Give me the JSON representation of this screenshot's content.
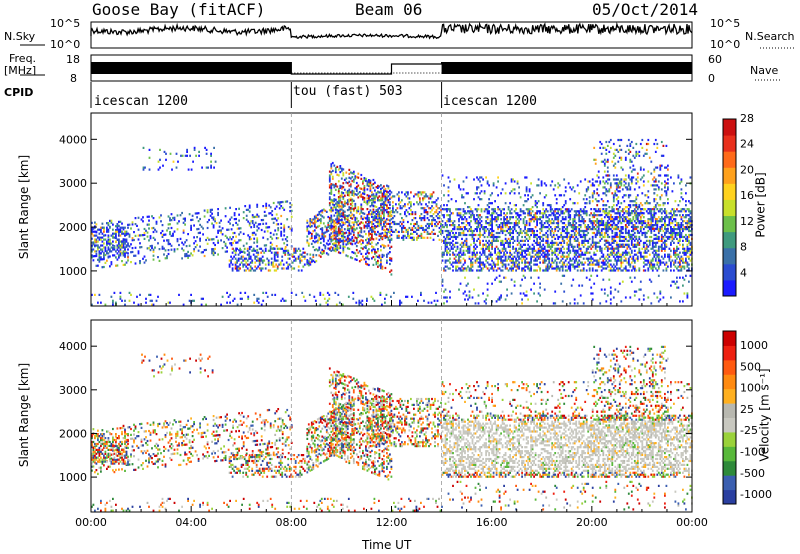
{
  "header": {
    "station": "Goose Bay (fitACF)",
    "beam": "Beam 06",
    "date": "05/Oct/2014"
  },
  "left_labels": {
    "nsky": "N.Sky",
    "freq_line1": "Freq.",
    "freq_line2": "[MHz]",
    "cpid": "CPID"
  },
  "right_labels": {
    "nsearch": "N.Search",
    "nave": "Nave"
  },
  "noise_axis": {
    "top": "10^5",
    "bottom": "10^0"
  },
  "freq_axis": {
    "top": "18",
    "bottom": "8"
  },
  "nave_axis": {
    "top": "60",
    "bottom": "0"
  },
  "cpid_segments": [
    {
      "label": "icescan 1200",
      "start": "00:00",
      "end": "08:00"
    },
    {
      "label": "tou (fast) 503",
      "start": "08:00",
      "end": "14:00"
    },
    {
      "label": "icescan 1200",
      "start": "14:00",
      "end": "24:00"
    }
  ],
  "chart_data": [
    {
      "type": "heatmap",
      "name": "power",
      "ylabel": "Slant Range [km]",
      "xlabel": "Time UT",
      "xticks": [
        "00:00",
        "04:00",
        "08:00",
        "12:00",
        "16:00",
        "20:00",
        "00:00"
      ],
      "yticks": [
        1000,
        2000,
        3000,
        4000
      ],
      "ylim": [
        200,
        4600
      ],
      "colorbar": {
        "label": "Power [dB]",
        "ticks": [
          4,
          8,
          12,
          16,
          20,
          24,
          28
        ],
        "colors": [
          "#1b1bff",
          "#2b4cd0",
          "#3a70a8",
          "#3f9a7e",
          "#6cc04a",
          "#c8e02b",
          "#ffd21e",
          "#ffa11c",
          "#ff6a1a",
          "#e9301c",
          "#cc1010"
        ]
      }
    },
    {
      "type": "heatmap",
      "name": "velocity",
      "ylabel": "Slant Range [km]",
      "xlabel": "Time UT",
      "xticks": [
        "00:00",
        "04:00",
        "08:00",
        "12:00",
        "16:00",
        "20:00",
        "00:00"
      ],
      "yticks": [
        1000,
        2000,
        3000,
        4000
      ],
      "ylim": [
        200,
        4600
      ],
      "colorbar": {
        "label": "Velocity [m s⁻¹]",
        "ticks": [
          1000,
          500,
          100,
          25,
          -25,
          -100,
          -500,
          -1000
        ],
        "colors": [
          "#2a3fa0",
          "#3b5fb0",
          "#2e8a3a",
          "#58b83a",
          "#9ad23a",
          "#c8c8c0",
          "#b8b8b0",
          "#ffb020",
          "#ff8a10",
          "#ff5a10",
          "#ee2010",
          "#cc0000"
        ]
      }
    }
  ]
}
